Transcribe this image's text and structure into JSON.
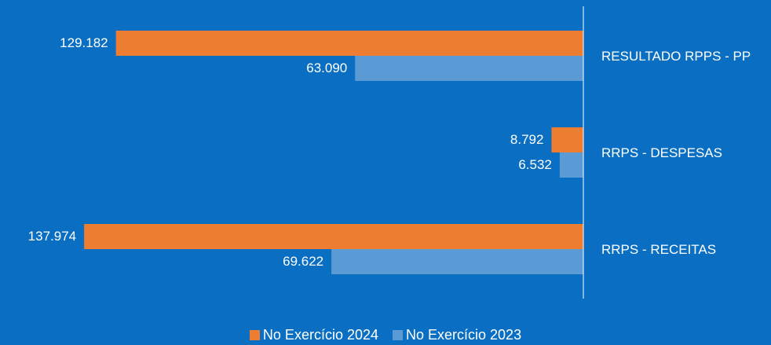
{
  "chart_data": {
    "type": "bar",
    "orientation": "horizontal",
    "categories": [
      "RESULTADO RPPS - PP",
      "RRPS - DESPESAS",
      "RRPS - RECEITAS"
    ],
    "series": [
      {
        "name": "No Exercício 2024",
        "color": "#ed7d31",
        "values": [
          129182,
          8792,
          137974
        ],
        "labels": [
          "129.182",
          "8.792",
          "137.974"
        ]
      },
      {
        "name": "No Exercício 2023",
        "color": "#5b9bd5",
        "values": [
          63090,
          6532,
          69622
        ],
        "labels": [
          "63.090",
          "6.532",
          "69.622"
        ]
      }
    ],
    "bar_direction": "leftward",
    "xlim": [
      0,
      138000
    ],
    "grid": false,
    "legend_position": "bottom"
  }
}
